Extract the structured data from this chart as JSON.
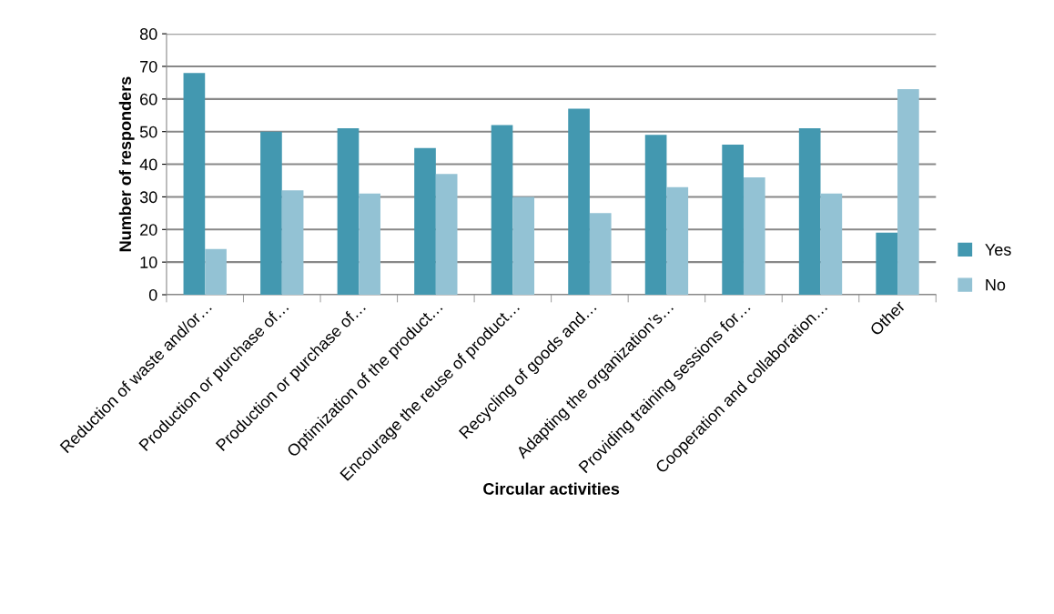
{
  "chart_data": {
    "type": "bar",
    "xlabel": "Circular activities",
    "ylabel": "Number of responders",
    "categories": [
      "Reduction of waste and/or…",
      "Production or purchase of…",
      "Production or purchase of…",
      "Optimization of the product…",
      "Encourage the reuse of product…",
      "Recycling of goods and…",
      "Adapting the organization’s…",
      "Providing training sessions for…",
      "Cooperation and collaboration…",
      "Other"
    ],
    "series": [
      {
        "name": "Yes",
        "color": "#4398b0",
        "values": [
          68,
          50,
          51,
          45,
          52,
          57,
          49,
          46,
          51,
          19
        ]
      },
      {
        "name": "No",
        "color": "#93c2d4",
        "values": [
          14,
          32,
          31,
          37,
          30,
          25,
          33,
          36,
          31,
          63
        ]
      }
    ],
    "ylim": [
      0,
      80
    ],
    "yticks": [
      0,
      10,
      20,
      30,
      40,
      50,
      60,
      70,
      80
    ],
    "grid": "y",
    "legend": "right"
  }
}
